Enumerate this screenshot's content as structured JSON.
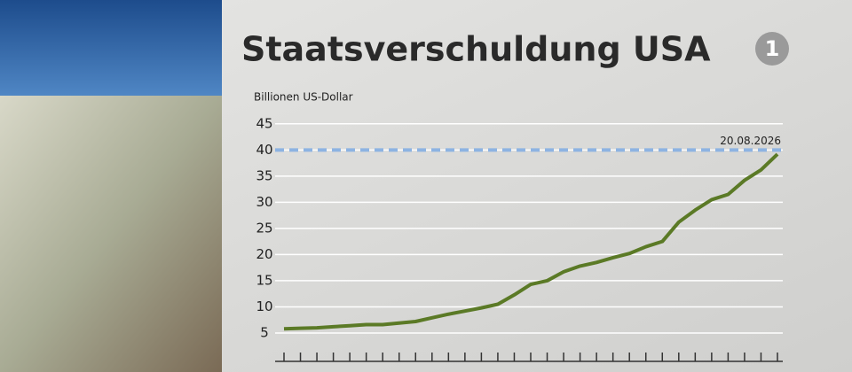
{
  "chart_data": {
    "type": "line",
    "title": "Staatsverschuldung USA",
    "y_axis_label": "Billionen US-Dollar",
    "logo": "1",
    "categories": [
      null,
      null,
      null,
      null,
      null,
      null,
      null,
      null,
      null,
      null,
      null,
      null,
      null,
      null,
      null,
      null,
      null,
      null,
      null,
      null,
      null,
      null,
      null,
      null,
      null,
      null,
      null,
      null,
      null,
      null,
      null
    ],
    "series": [
      {
        "name": "Staatsverschuldung",
        "color": "#5b7a26",
        "values": [
          5.8,
          5.9,
          6.0,
          6.2,
          6.4,
          6.6,
          6.6,
          6.9,
          7.2,
          7.9,
          8.6,
          9.2,
          9.8,
          10.5,
          12.3,
          14.3,
          15.0,
          16.7,
          17.8,
          18.5,
          19.4,
          20.2,
          21.5,
          22.5,
          26.2,
          28.5,
          30.5,
          31.5,
          34.2,
          36.2,
          39.2
        ]
      }
    ],
    "reference_line": {
      "value": 40,
      "label": "20.08.2026",
      "color": "#8db3e2"
    },
    "ylim": [
      0,
      47
    ],
    "yticks": [
      5,
      10,
      15,
      20,
      25,
      30,
      35,
      40,
      45
    ],
    "grid": true
  }
}
